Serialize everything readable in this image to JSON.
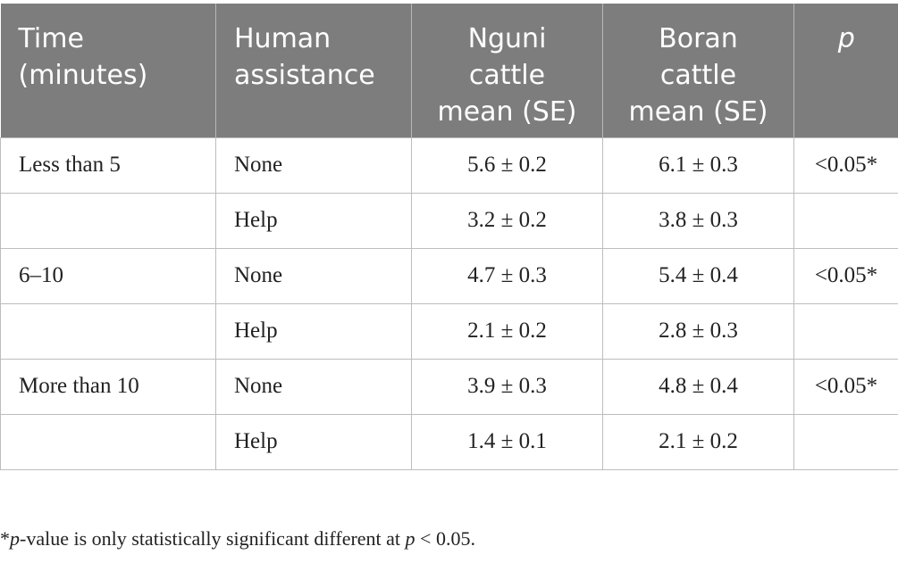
{
  "table": {
    "headers": [
      [
        "Time",
        "(minutes)"
      ],
      [
        "Human",
        "assistance"
      ],
      [
        "Nguni",
        "cattle",
        "mean (SE)"
      ],
      [
        "Boran",
        "cattle",
        "mean (SE)"
      ],
      [
        "p"
      ]
    ],
    "rows": [
      {
        "time": "Less than 5",
        "assistance": "None",
        "nguni": "5.6 ± 0.2",
        "boran": "6.1 ± 0.3",
        "p": "<0.05*"
      },
      {
        "time": "",
        "assistance": "Help",
        "nguni": "3.2 ± 0.2",
        "boran": "3.8 ± 0.3",
        "p": ""
      },
      {
        "time": "6–10",
        "assistance": "None",
        "nguni": "4.7 ± 0.3",
        "boran": "5.4 ± 0.4",
        "p": "<0.05*"
      },
      {
        "time": "",
        "assistance": "Help",
        "nguni": "2.1 ± 0.2",
        "boran": "2.8 ± 0.3",
        "p": ""
      },
      {
        "time": "More than 10",
        "assistance": "None",
        "nguni": "3.9 ± 0.3",
        "boran": "4.8 ± 0.4",
        "p": "<0.05*"
      },
      {
        "time": "",
        "assistance": "Help",
        "nguni": "1.4 ± 0.1",
        "boran": "2.1 ± 0.2",
        "p": ""
      }
    ]
  },
  "footnote": {
    "star": "*",
    "p_italic": "p",
    "text_a": "-value is only statistically significant different at ",
    "p_italic_2": "p",
    "text_b": " < 0.05."
  },
  "colors": {
    "header_bg": "#7c7d7c",
    "header_text": "#ffffff",
    "grid": "#bdbdbd"
  }
}
